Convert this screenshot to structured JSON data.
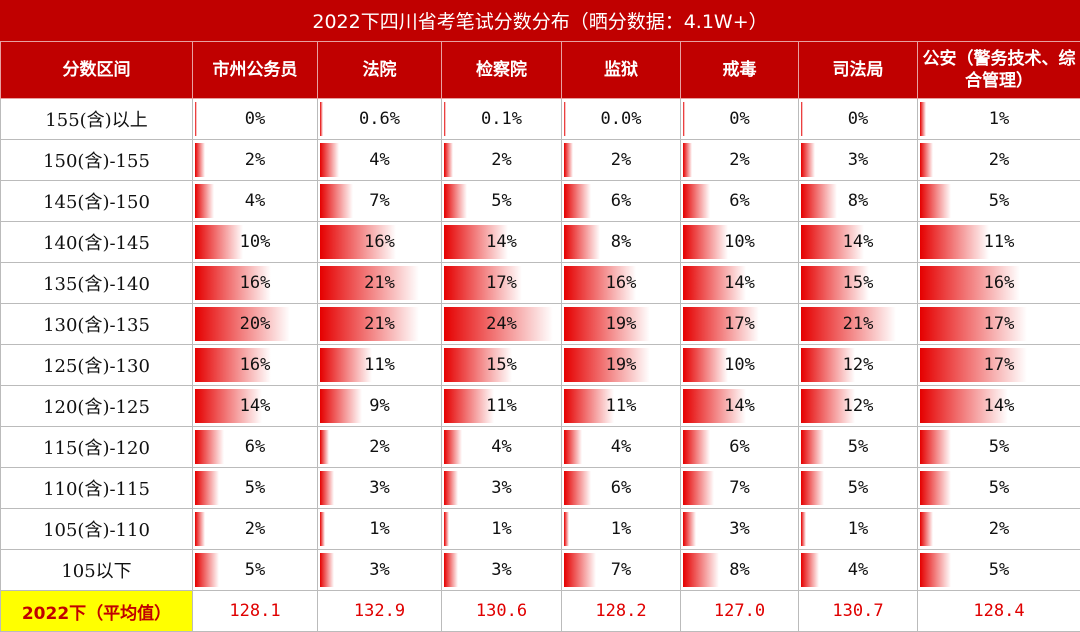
{
  "chart_data": {
    "type": "table",
    "title": "2022下四川省考笔试分数分布（晒分数据：4.1W+）",
    "row_header": "分数区间",
    "columns": [
      "市州公务员",
      "法院",
      "检察院",
      "监狱",
      "戒毒",
      "司法局",
      "公安（警务技术、综合管理）"
    ],
    "rows": [
      {
        "label": "155(含)以上",
        "values": [
          "0%",
          "0.6%",
          "0.1%",
          "0.0%",
          "0%",
          "0%",
          "1%"
        ]
      },
      {
        "label": "150(含)-155",
        "values": [
          "2%",
          "4%",
          "2%",
          "2%",
          "2%",
          "3%",
          "2%"
        ]
      },
      {
        "label": "145(含)-150",
        "values": [
          "4%",
          "7%",
          "5%",
          "6%",
          "6%",
          "8%",
          "5%"
        ]
      },
      {
        "label": "140(含)-145",
        "values": [
          "10%",
          "16%",
          "14%",
          "8%",
          "10%",
          "14%",
          "11%"
        ]
      },
      {
        "label": "135(含)-140",
        "values": [
          "16%",
          "21%",
          "17%",
          "16%",
          "14%",
          "15%",
          "16%"
        ]
      },
      {
        "label": "130(含)-135",
        "values": [
          "20%",
          "21%",
          "24%",
          "19%",
          "17%",
          "21%",
          "17%"
        ]
      },
      {
        "label": "125(含)-130",
        "values": [
          "16%",
          "11%",
          "15%",
          "19%",
          "10%",
          "12%",
          "17%"
        ]
      },
      {
        "label": "120(含)-125",
        "values": [
          "14%",
          "9%",
          "11%",
          "11%",
          "14%",
          "12%",
          "14%"
        ]
      },
      {
        "label": "115(含)-120",
        "values": [
          "6%",
          "2%",
          "4%",
          "4%",
          "6%",
          "5%",
          "5%"
        ]
      },
      {
        "label": "110(含)-115",
        "values": [
          "5%",
          "3%",
          "3%",
          "6%",
          "7%",
          "5%",
          "5%"
        ]
      },
      {
        "label": "105(含)-110",
        "values": [
          "2%",
          "1%",
          "1%",
          "1%",
          "3%",
          "1%",
          "2%"
        ]
      },
      {
        "label": "105以下",
        "values": [
          "5%",
          "3%",
          "3%",
          "7%",
          "8%",
          "4%",
          "5%"
        ]
      }
    ],
    "average": {
      "label": "2022下（平均值）",
      "values": [
        "128.1",
        "132.9",
        "130.6",
        "128.2",
        "127.0",
        "130.7",
        "128.4"
      ]
    },
    "colors": {
      "header": "#c00000",
      "bar": "#e50000",
      "average_label_bg": "#ffff00",
      "average_text": "#e00000"
    }
  }
}
